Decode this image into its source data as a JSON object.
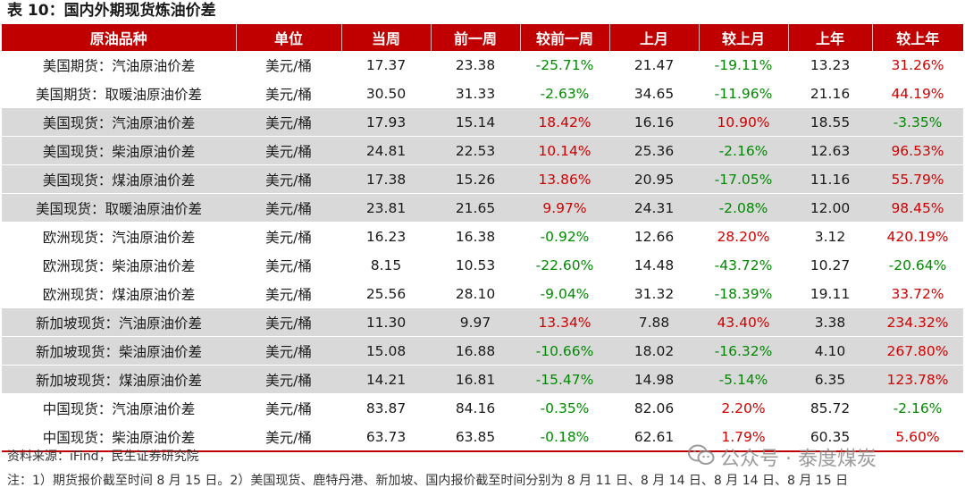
{
  "title": "表 10：国内外期现货炼油价差",
  "headers": [
    "原油品种",
    "单位",
    "当周",
    "前一周",
    "较前一周",
    "上月",
    "较上月",
    "上年",
    "较上年"
  ],
  "rows": [
    {
      "name": "美国期货：汽油原油价差",
      "unit": "美元/桶",
      "cur": "17.37",
      "prev_w": "23.38",
      "chg_w": "-25.71%",
      "prev_m": "21.47",
      "chg_m": "-19.11%",
      "prev_y": "13.23",
      "chg_y": "31.26%"
    },
    {
      "name": "美国期货：取暖油原油价差",
      "unit": "美元/桶",
      "cur": "30.50",
      "prev_w": "31.33",
      "chg_w": "-2.63%",
      "prev_m": "34.65",
      "chg_m": "-11.96%",
      "prev_y": "21.16",
      "chg_y": "44.19%"
    },
    {
      "name": "美国现货：汽油原油价差",
      "unit": "美元/桶",
      "cur": "17.93",
      "prev_w": "15.14",
      "chg_w": "18.42%",
      "prev_m": "16.16",
      "chg_m": "10.90%",
      "prev_y": "18.55",
      "chg_y": "-3.35%"
    },
    {
      "name": "美国现货：柴油原油价差",
      "unit": "美元/桶",
      "cur": "24.81",
      "prev_w": "22.53",
      "chg_w": "10.14%",
      "prev_m": "25.36",
      "chg_m": "-2.16%",
      "prev_y": "12.63",
      "chg_y": "96.53%"
    },
    {
      "name": "美国现货：煤油原油价差",
      "unit": "美元/桶",
      "cur": "17.38",
      "prev_w": "15.26",
      "chg_w": "13.86%",
      "prev_m": "20.95",
      "chg_m": "-17.05%",
      "prev_y": "11.16",
      "chg_y": "55.79%"
    },
    {
      "name": "美国现货：取暖油原油价差",
      "unit": "美元/桶",
      "cur": "23.81",
      "prev_w": "21.65",
      "chg_w": "9.97%",
      "prev_m": "24.31",
      "chg_m": "-2.08%",
      "prev_y": "12.00",
      "chg_y": "98.45%"
    },
    {
      "name": "欧洲现货：汽油原油价差",
      "unit": "美元/桶",
      "cur": "16.23",
      "prev_w": "16.38",
      "chg_w": "-0.92%",
      "prev_m": "12.66",
      "chg_m": "28.20%",
      "prev_y": "3.12",
      "chg_y": "420.19%"
    },
    {
      "name": "欧洲现货：柴油原油价差",
      "unit": "美元/桶",
      "cur": "8.15",
      "prev_w": "10.53",
      "chg_w": "-22.60%",
      "prev_m": "14.48",
      "chg_m": "-43.72%",
      "prev_y": "10.27",
      "chg_y": "-20.64%"
    },
    {
      "name": "欧洲现货：煤油原油价差",
      "unit": "美元/桶",
      "cur": "25.56",
      "prev_w": "28.10",
      "chg_w": "-9.04%",
      "prev_m": "31.32",
      "chg_m": "-18.39%",
      "prev_y": "19.11",
      "chg_y": "33.72%"
    },
    {
      "name": "新加坡现货：汽油原油价差",
      "unit": "美元/桶",
      "cur": "11.30",
      "prev_w": "9.97",
      "chg_w": "13.34%",
      "prev_m": "7.88",
      "chg_m": "43.40%",
      "prev_y": "3.38",
      "chg_y": "234.32%"
    },
    {
      "name": "新加坡现货：柴油原油价差",
      "unit": "美元/桶",
      "cur": "15.08",
      "prev_w": "16.88",
      "chg_w": "-10.66%",
      "prev_m": "18.02",
      "chg_m": "-16.32%",
      "prev_y": "4.10",
      "chg_y": "267.80%"
    },
    {
      "name": "新加坡现货：煤油原油价差",
      "unit": "美元/桶",
      "cur": "14.21",
      "prev_w": "16.81",
      "chg_w": "-15.47%",
      "prev_m": "14.98",
      "chg_m": "-5.14%",
      "prev_y": "6.35",
      "chg_y": "123.78%"
    },
    {
      "name": "中国现货：汽油原油价差",
      "unit": "美元/桶",
      "cur": "83.87",
      "prev_w": "84.16",
      "chg_w": "-0.35%",
      "prev_m": "82.06",
      "chg_m": "2.20%",
      "prev_y": "85.72",
      "chg_y": "-2.16%"
    },
    {
      "name": "中国现货：柴油原油价差",
      "unit": "美元/桶",
      "cur": "63.73",
      "prev_w": "63.85",
      "chg_w": "-0.18%",
      "prev_m": "62.61",
      "chg_m": "1.79%",
      "prev_y": "60.35",
      "chg_y": "5.60%"
    }
  ],
  "source": "资料来源：iFind，民生证券研究院",
  "note": "注：1）期货报价截至时间 8 月 15 日。2）美国现货、鹿特丹港、新加坡、国内报价截至时间分别为 8 月 11 日、8 月 14 日、8 月 14 日、8 月 15 日",
  "watermark": "公众号 · 泰度煤炭",
  "colors": {
    "header_bg": "#c00000",
    "positive": "#d00000",
    "negative": "#008a00",
    "band": "#d9d9d9"
  }
}
